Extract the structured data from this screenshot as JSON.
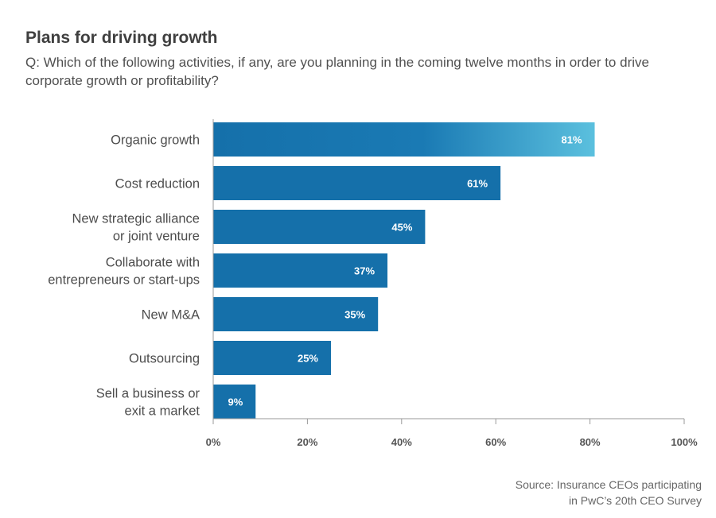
{
  "chart_data": {
    "type": "bar",
    "orientation": "horizontal",
    "title": "Plans for driving growth",
    "subtitle": "Q: Which of the following activities, if any, are you planning in the coming twelve months in order to drive corporate growth or profitability?",
    "categories": [
      [
        "Organic growth"
      ],
      [
        "Cost reduction"
      ],
      [
        "New strategic alliance",
        "or joint venture"
      ],
      [
        "Collaborate with",
        "entrepreneurs or start-ups"
      ],
      [
        "New M&A"
      ],
      [
        "Outsourcing"
      ],
      [
        "Sell a business or",
        "exit a market"
      ]
    ],
    "values": [
      81,
      61,
      45,
      37,
      35,
      25,
      9
    ],
    "value_labels": [
      "81%",
      "61%",
      "45%",
      "37%",
      "35%",
      "25%",
      "9%"
    ],
    "xlim": [
      0,
      100
    ],
    "x_ticks": [
      0,
      20,
      40,
      60,
      80,
      100
    ],
    "x_tick_labels": [
      "0%",
      "20%",
      "40%",
      "60%",
      "80%",
      "100%"
    ],
    "xlabel": "",
    "ylabel": "",
    "grid": false,
    "colors": {
      "bar": "#1570aa",
      "bar_highlight_end": "#5bc0de",
      "axis": "#9a9a9a"
    }
  },
  "source": "Source: Insurance CEOs participating\nin PwC’s 20th CEO Survey"
}
